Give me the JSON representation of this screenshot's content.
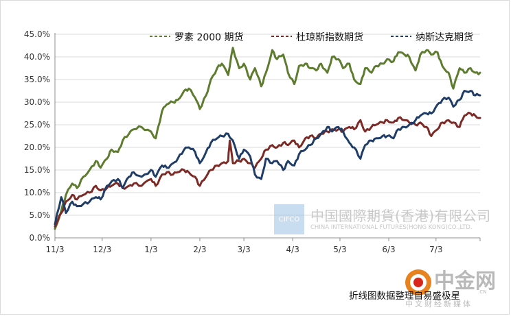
{
  "chart_data": {
    "type": "line",
    "title": "",
    "xlabel": "",
    "ylabel": "",
    "ylim": [
      0,
      45
    ],
    "y_ticks": [
      "0.0%",
      "5.0%",
      "10.0%",
      "15.0%",
      "20.0%",
      "25.0%",
      "30.0%",
      "35.0%",
      "40.0%",
      "45.0%"
    ],
    "x_ticks": [
      "11/3",
      "12/3",
      "1/3",
      "2/3",
      "3/3",
      "4/3",
      "5/3",
      "6/3",
      "7/3"
    ],
    "x_range": [
      "2016-11-03",
      "2017-07-31"
    ],
    "grid": "horizontal",
    "legend_position": "top",
    "series": [
      {
        "name": "罗素 2000 期货",
        "color": "#5e7c2f",
        "points": [
          [
            "2016-11-03",
            2.0
          ],
          [
            "2016-11-07",
            6.0
          ],
          [
            "2016-11-10",
            9.5
          ],
          [
            "2016-11-14",
            12.0
          ],
          [
            "2016-11-17",
            11.0
          ],
          [
            "2016-11-21",
            13.5
          ],
          [
            "2016-11-25",
            15.0
          ],
          [
            "2016-11-29",
            17.0
          ],
          [
            "2016-12-02",
            15.5
          ],
          [
            "2016-12-06",
            17.5
          ],
          [
            "2016-12-09",
            19.5
          ],
          [
            "2016-12-13",
            19.0
          ],
          [
            "2016-12-16",
            21.5
          ],
          [
            "2016-12-20",
            23.0
          ],
          [
            "2016-12-23",
            24.0
          ],
          [
            "2016-12-28",
            24.5
          ],
          [
            "2017-01-03",
            23.5
          ],
          [
            "2017-01-06",
            22.0
          ],
          [
            "2017-01-10",
            28.0
          ],
          [
            "2017-01-13",
            29.5
          ],
          [
            "2017-01-17",
            30.0
          ],
          [
            "2017-01-20",
            30.5
          ],
          [
            "2017-01-24",
            32.5
          ],
          [
            "2017-01-27",
            33.0
          ],
          [
            "2017-01-31",
            31.0
          ],
          [
            "2017-02-03",
            28.5
          ],
          [
            "2017-02-07",
            31.5
          ],
          [
            "2017-02-10",
            35.0
          ],
          [
            "2017-02-14",
            37.5
          ],
          [
            "2017-02-17",
            38.5
          ],
          [
            "2017-02-21",
            36.0
          ],
          [
            "2017-02-24",
            42.0
          ],
          [
            "2017-02-28",
            37.5
          ],
          [
            "2017-03-03",
            38.5
          ],
          [
            "2017-03-07",
            35.0
          ],
          [
            "2017-03-10",
            37.5
          ],
          [
            "2017-03-14",
            33.5
          ],
          [
            "2017-03-17",
            36.5
          ],
          [
            "2017-03-21",
            41.5
          ],
          [
            "2017-03-24",
            39.5
          ],
          [
            "2017-03-28",
            40.5
          ],
          [
            "2017-03-31",
            36.5
          ],
          [
            "2017-04-04",
            34.0
          ],
          [
            "2017-04-07",
            38.0
          ],
          [
            "2017-04-11",
            38.5
          ],
          [
            "2017-04-14",
            37.5
          ],
          [
            "2017-04-18",
            37.0
          ],
          [
            "2017-04-21",
            38.5
          ],
          [
            "2017-04-25",
            36.5
          ],
          [
            "2017-04-28",
            40.0
          ],
          [
            "2017-05-02",
            39.5
          ],
          [
            "2017-05-05",
            37.5
          ],
          [
            "2017-05-09",
            38.5
          ],
          [
            "2017-05-12",
            35.0
          ],
          [
            "2017-05-16",
            34.0
          ],
          [
            "2017-05-19",
            37.5
          ],
          [
            "2017-05-23",
            36.5
          ],
          [
            "2017-05-26",
            38.0
          ],
          [
            "2017-05-30",
            38.5
          ],
          [
            "2017-06-02",
            39.5
          ],
          [
            "2017-06-06",
            39.0
          ],
          [
            "2017-06-09",
            41.0
          ],
          [
            "2017-06-13",
            40.5
          ],
          [
            "2017-06-16",
            40.0
          ],
          [
            "2017-06-20",
            37.0
          ],
          [
            "2017-06-23",
            40.5
          ],
          [
            "2017-06-27",
            41.5
          ],
          [
            "2017-06-30",
            40.5
          ],
          [
            "2017-07-04",
            41.0
          ],
          [
            "2017-07-07",
            38.0
          ],
          [
            "2017-07-11",
            36.5
          ],
          [
            "2017-07-14",
            33.0
          ],
          [
            "2017-07-18",
            37.5
          ],
          [
            "2017-07-21",
            36.5
          ],
          [
            "2017-07-25",
            37.5
          ],
          [
            "2017-07-28",
            36.5
          ],
          [
            "2017-07-31",
            36.5
          ]
        ]
      },
      {
        "name": "杜琼斯指数期货",
        "color": "#7b2a26",
        "points": [
          [
            "2016-11-03",
            2.5
          ],
          [
            "2016-11-07",
            5.5
          ],
          [
            "2016-11-10",
            8.0
          ],
          [
            "2016-11-14",
            9.5
          ],
          [
            "2016-11-17",
            8.5
          ],
          [
            "2016-11-21",
            9.5
          ],
          [
            "2016-11-25",
            10.0
          ],
          [
            "2016-11-29",
            11.5
          ],
          [
            "2016-12-02",
            10.5
          ],
          [
            "2016-12-06",
            11.0
          ],
          [
            "2016-12-09",
            11.5
          ],
          [
            "2016-12-13",
            12.0
          ],
          [
            "2016-12-16",
            11.0
          ],
          [
            "2016-12-20",
            11.5
          ],
          [
            "2016-12-23",
            12.0
          ],
          [
            "2016-12-28",
            11.5
          ],
          [
            "2017-01-03",
            13.0
          ],
          [
            "2017-01-06",
            11.5
          ],
          [
            "2017-01-10",
            14.0
          ],
          [
            "2017-01-13",
            14.5
          ],
          [
            "2017-01-17",
            14.0
          ],
          [
            "2017-01-20",
            14.5
          ],
          [
            "2017-01-24",
            15.0
          ],
          [
            "2017-01-27",
            14.5
          ],
          [
            "2017-01-31",
            13.5
          ],
          [
            "2017-02-03",
            11.5
          ],
          [
            "2017-02-07",
            13.5
          ],
          [
            "2017-02-10",
            15.0
          ],
          [
            "2017-02-14",
            16.0
          ],
          [
            "2017-02-17",
            16.5
          ],
          [
            "2017-02-21",
            17.0
          ],
          [
            "2017-02-22",
            21.5
          ],
          [
            "2017-02-24",
            16.5
          ],
          [
            "2017-02-28",
            17.0
          ],
          [
            "2017-03-03",
            17.5
          ],
          [
            "2017-03-07",
            16.5
          ],
          [
            "2017-03-10",
            15.5
          ],
          [
            "2017-03-14",
            17.5
          ],
          [
            "2017-03-17",
            19.5
          ],
          [
            "2017-03-21",
            20.5
          ],
          [
            "2017-03-24",
            20.0
          ],
          [
            "2017-03-28",
            21.0
          ],
          [
            "2017-03-31",
            20.5
          ],
          [
            "2017-04-04",
            21.5
          ],
          [
            "2017-04-07",
            20.0
          ],
          [
            "2017-04-11",
            22.0
          ],
          [
            "2017-04-14",
            22.5
          ],
          [
            "2017-04-18",
            22.0
          ],
          [
            "2017-04-21",
            23.0
          ],
          [
            "2017-04-25",
            23.5
          ],
          [
            "2017-04-28",
            24.0
          ],
          [
            "2017-05-02",
            24.0
          ],
          [
            "2017-05-05",
            23.5
          ],
          [
            "2017-05-09",
            24.5
          ],
          [
            "2017-05-12",
            24.0
          ],
          [
            "2017-05-16",
            26.0
          ],
          [
            "2017-05-19",
            23.5
          ],
          [
            "2017-05-23",
            24.5
          ],
          [
            "2017-05-26",
            25.0
          ],
          [
            "2017-05-30",
            25.5
          ],
          [
            "2017-06-02",
            26.0
          ],
          [
            "2017-06-06",
            25.5
          ],
          [
            "2017-06-09",
            26.5
          ],
          [
            "2017-06-13",
            26.0
          ],
          [
            "2017-06-16",
            25.5
          ],
          [
            "2017-06-20",
            25.0
          ],
          [
            "2017-06-23",
            25.5
          ],
          [
            "2017-06-27",
            24.5
          ],
          [
            "2017-06-30",
            22.5
          ],
          [
            "2017-07-04",
            24.0
          ],
          [
            "2017-07-07",
            25.5
          ],
          [
            "2017-07-11",
            26.0
          ],
          [
            "2017-07-14",
            25.5
          ],
          [
            "2017-07-18",
            24.5
          ],
          [
            "2017-07-21",
            27.0
          ],
          [
            "2017-07-25",
            27.5
          ],
          [
            "2017-07-28",
            27.0
          ],
          [
            "2017-07-31",
            26.5
          ]
        ]
      },
      {
        "name": "纳斯达克期货",
        "color": "#1f3d66",
        "points": [
          [
            "2016-11-03",
            3.0
          ],
          [
            "2016-11-07",
            9.0
          ],
          [
            "2016-11-10",
            5.5
          ],
          [
            "2016-11-14",
            8.0
          ],
          [
            "2016-11-17",
            7.0
          ],
          [
            "2016-11-21",
            7.5
          ],
          [
            "2016-11-25",
            8.0
          ],
          [
            "2016-11-29",
            9.0
          ],
          [
            "2016-12-02",
            8.5
          ],
          [
            "2016-12-06",
            11.5
          ],
          [
            "2016-12-09",
            12.5
          ],
          [
            "2016-12-13",
            13.0
          ],
          [
            "2016-12-16",
            11.0
          ],
          [
            "2016-12-20",
            13.5
          ],
          [
            "2016-12-23",
            14.5
          ],
          [
            "2016-12-28",
            13.5
          ],
          [
            "2017-01-03",
            15.0
          ],
          [
            "2017-01-06",
            13.5
          ],
          [
            "2017-01-10",
            16.0
          ],
          [
            "2017-01-13",
            15.5
          ],
          [
            "2017-01-17",
            16.5
          ],
          [
            "2017-01-20",
            17.5
          ],
          [
            "2017-01-24",
            19.5
          ],
          [
            "2017-01-27",
            20.0
          ],
          [
            "2017-01-31",
            19.0
          ],
          [
            "2017-02-03",
            16.5
          ],
          [
            "2017-02-07",
            19.0
          ],
          [
            "2017-02-10",
            21.0
          ],
          [
            "2017-02-14",
            22.0
          ],
          [
            "2017-02-17",
            22.5
          ],
          [
            "2017-02-21",
            23.0
          ],
          [
            "2017-02-24",
            21.5
          ],
          [
            "2017-02-28",
            17.5
          ],
          [
            "2017-03-03",
            19.5
          ],
          [
            "2017-03-07",
            18.0
          ],
          [
            "2017-03-10",
            14.0
          ],
          [
            "2017-03-14",
            13.0
          ],
          [
            "2017-03-17",
            17.5
          ],
          [
            "2017-03-21",
            16.5
          ],
          [
            "2017-03-24",
            17.0
          ],
          [
            "2017-03-28",
            15.0
          ],
          [
            "2017-03-31",
            17.0
          ],
          [
            "2017-04-04",
            16.0
          ],
          [
            "2017-04-07",
            18.5
          ],
          [
            "2017-04-11",
            19.5
          ],
          [
            "2017-04-14",
            20.5
          ],
          [
            "2017-04-18",
            22.0
          ],
          [
            "2017-04-21",
            23.0
          ],
          [
            "2017-04-25",
            24.5
          ],
          [
            "2017-04-28",
            23.5
          ],
          [
            "2017-05-02",
            24.5
          ],
          [
            "2017-05-05",
            23.5
          ],
          [
            "2017-05-09",
            21.0
          ],
          [
            "2017-05-12",
            20.0
          ],
          [
            "2017-05-16",
            17.5
          ],
          [
            "2017-05-19",
            20.5
          ],
          [
            "2017-05-23",
            21.5
          ],
          [
            "2017-05-26",
            22.0
          ],
          [
            "2017-05-30",
            22.5
          ],
          [
            "2017-06-02",
            22.5
          ],
          [
            "2017-06-06",
            22.0
          ],
          [
            "2017-06-09",
            24.0
          ],
          [
            "2017-06-13",
            24.5
          ],
          [
            "2017-06-16",
            25.0
          ],
          [
            "2017-06-20",
            26.0
          ],
          [
            "2017-06-23",
            27.0
          ],
          [
            "2017-06-27",
            27.5
          ],
          [
            "2017-06-30",
            27.5
          ],
          [
            "2017-07-04",
            29.5
          ],
          [
            "2017-07-07",
            30.5
          ],
          [
            "2017-07-11",
            31.0
          ],
          [
            "2017-07-14",
            29.0
          ],
          [
            "2017-07-18",
            30.5
          ],
          [
            "2017-07-21",
            32.5
          ],
          [
            "2017-07-25",
            32.5
          ],
          [
            "2017-07-28",
            31.5
          ],
          [
            "2017-07-31",
            31.5
          ]
        ]
      }
    ]
  },
  "watermark": {
    "logo_text": "CIFCO",
    "name_cn": "中国國際期貨(香港)有限公司",
    "name_en": "CHINA INTERNATIONAL FUTURES(HONG KONG)CO.,LTD."
  },
  "source_note": "折线图数据整理自易盛极星",
  "site_logo": {
    "name": "中金网",
    "subtitle": "中文财经新媒体",
    "url": ".CN"
  }
}
